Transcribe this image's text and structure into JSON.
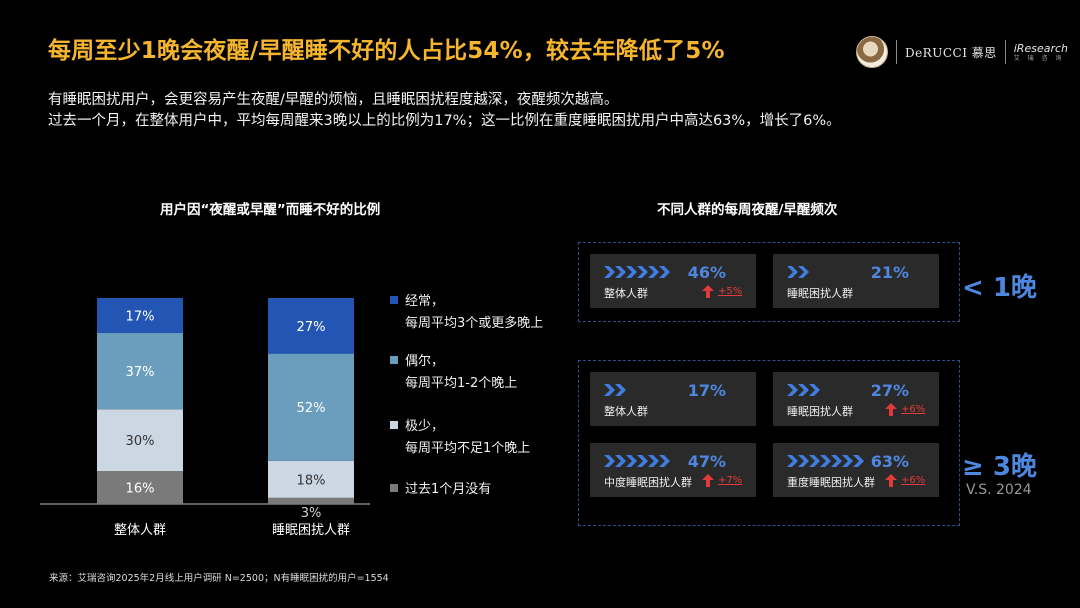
{
  "title": "每周至少1晚会夜醒/早醒睡不好的人占比54%，较去年降低了5%",
  "logos": {
    "brand": "DeRUCCI 慕思",
    "partner": "iResearch",
    "partner_sub": "艾 瑞 咨 询"
  },
  "description": [
    "有睡眠困扰用户，会更容易产生夜醒/早醒的烦恼，且睡眠困扰程度越深，夜醒频次越高。",
    "过去一个月，在整体用户中，平均每周醒来3晚以上的比例为17%；这一比例在重度睡眠困扰用户中高达63%，增长了6%。"
  ],
  "left_chart_title": "用户因“夜醒或早醒”而睡不好的比例",
  "right_chart_title": "不同人群的每周夜醒/早醒频次",
  "chart_data": [
    {
      "type": "bar",
      "stacked": true,
      "title": "用户因“夜醒或早醒”而睡不好的比例",
      "categories": [
        "整体人群",
        "睡眠困扰人群"
      ],
      "ylim": [
        0,
        100
      ],
      "series": [
        {
          "name": "过去1个月没有",
          "values": [
            16,
            3
          ],
          "labels": [
            "16%",
            "3%"
          ],
          "color": "#7a7a7a"
        },
        {
          "name": "极少，每周平均不足1个晚上",
          "values": [
            30,
            18
          ],
          "labels": [
            "30%",
            "18%"
          ],
          "color": "#cbd7e3"
        },
        {
          "name": "偶尔，每周平均1-2个晚上",
          "values": [
            37,
            52
          ],
          "labels": [
            "37%",
            "52%"
          ],
          "color": "#6b9ebc"
        },
        {
          "name": "经常，每周平均3个或更多晚上",
          "values": [
            17,
            27
          ],
          "labels": [
            "17%",
            "27%"
          ],
          "color": "#2356b4"
        }
      ],
      "legend": [
        {
          "line1": "经常，",
          "line2": "每周平均3个或更多晚上",
          "color": "#2356b4"
        },
        {
          "line1": "偶尔，",
          "line2": "每周平均1-2个晚上",
          "color": "#6b9ebc"
        },
        {
          "line1": "极少，",
          "line2": "每周平均不足1个晚上",
          "color": "#cbd7e3"
        },
        {
          "line1": "过去1个月没有",
          "line2": "",
          "color": "#7a7a7a"
        }
      ],
      "legend_position": "right"
    },
    {
      "type": "table",
      "title": "不同人群的每周夜醒/早醒频次",
      "groups": [
        {
          "label": "< 1晚",
          "cards": [
            {
              "group": "整体人群",
              "value": "46%",
              "change": "+5%",
              "chevrons": 6
            },
            {
              "group": "睡眠困扰人群",
              "value": "21%",
              "change": "",
              "chevrons": 2
            }
          ]
        },
        {
          "label": "≥ 3晚",
          "sublabel": "V.S. 2024",
          "cards": [
            {
              "group": "整体人群",
              "value": "17%",
              "change": "",
              "chevrons": 2
            },
            {
              "group": "睡眠困扰人群",
              "value": "27%",
              "change": "+6%",
              "chevrons": 3
            },
            {
              "group": "中度睡眠困扰人群",
              "value": "47%",
              "change": "+7%",
              "chevrons": 6
            },
            {
              "group": "重度睡眠困扰人群",
              "value": "63%",
              "change": "+6%",
              "chevrons": 7
            }
          ]
        }
      ]
    }
  ],
  "colors": {
    "title": "#f5b52e",
    "accent": "#4f87e0",
    "increase": "#e23a3a",
    "card_bg": "#2a2a2a",
    "dash": "#2e4f86"
  },
  "source": "来源：艾瑞咨询2025年2月线上用户调研 N=2500；N有睡眠困扰的用户=1554"
}
